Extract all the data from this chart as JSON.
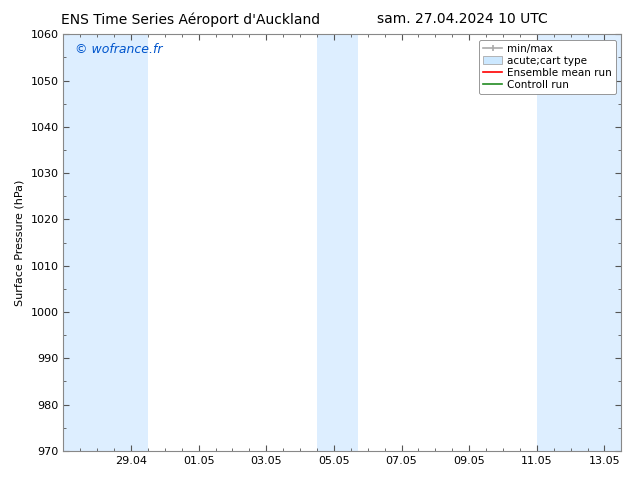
{
  "title_left": "ENS Time Series Aéroport d'Auckland",
  "title_right": "sam. 27.04.2024 10 UTC",
  "ylabel": "Surface Pressure (hPa)",
  "ylim": [
    970,
    1060
  ],
  "yticks": [
    970,
    980,
    990,
    1000,
    1010,
    1020,
    1030,
    1040,
    1050,
    1060
  ],
  "x_ticks_labels": [
    "29.04",
    "01.05",
    "03.05",
    "05.05",
    "07.05",
    "09.05",
    "11.05",
    "13.05"
  ],
  "watermark": "© wofrance.fr",
  "watermark_color": "#0055cc",
  "bg_color": "#ffffff",
  "band_color": "#ddeeff",
  "band_alpha": 1.0,
  "legend_entries": [
    {
      "label": "min/max",
      "type": "errorbar",
      "color": "#aaaaaa"
    },
    {
      "label": "acute;cart type",
      "type": "box",
      "facecolor": "#cce8ff",
      "edgecolor": "#aaaaaa"
    },
    {
      "label": "Ensemble mean run",
      "type": "line",
      "color": "#ff0000"
    },
    {
      "label": "Controll run",
      "type": "line",
      "color": "#008000"
    }
  ],
  "font_size_title": 10,
  "font_size_axis": 8,
  "font_size_legend": 7.5,
  "font_size_watermark": 9
}
